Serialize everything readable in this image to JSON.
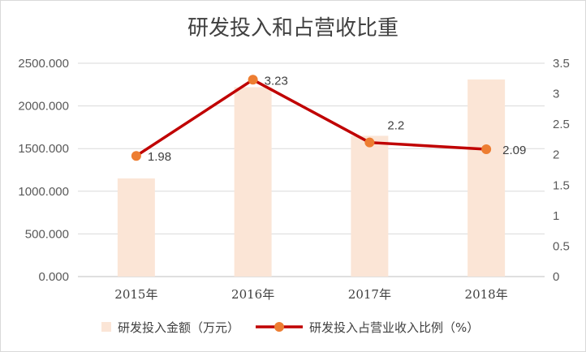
{
  "chart_data": {
    "type": "bar",
    "title": "研发投入和占营收比重",
    "categories": [
      "2015年",
      "2016年",
      "2017年",
      "2018年"
    ],
    "y_left": {
      "ylim": [
        0,
        2500
      ],
      "ticks": [
        0,
        500,
        1000,
        1500,
        2000,
        2500
      ],
      "tick_labels": [
        "0.000",
        "500.000",
        "1000.000",
        "1500.000",
        "2000.000",
        "2500.000"
      ]
    },
    "y_right": {
      "ylim": [
        0,
        3.5
      ],
      "ticks": [
        0,
        0.5,
        1,
        1.5,
        2,
        2.5,
        3,
        3.5
      ],
      "tick_labels": [
        "0",
        "0.5",
        "1",
        "1.5",
        "2",
        "2.5",
        "3",
        "3.5"
      ]
    },
    "grid": true,
    "legend_position": "bottom",
    "series": [
      {
        "name": "研发投入金额（万元）",
        "type": "bar",
        "axis": "left",
        "color": "#fbe5d6",
        "values": [
          1150,
          2220,
          1650,
          2310
        ]
      },
      {
        "name": "研发投入占营业收入比例（%）",
        "type": "line",
        "axis": "right",
        "color": "#c00000",
        "marker_color": "#ed7d31",
        "values": [
          1.98,
          3.23,
          2.2,
          2.09
        ],
        "data_labels": [
          "1.98",
          "3.23",
          "2.2",
          "2.09"
        ]
      }
    ]
  }
}
